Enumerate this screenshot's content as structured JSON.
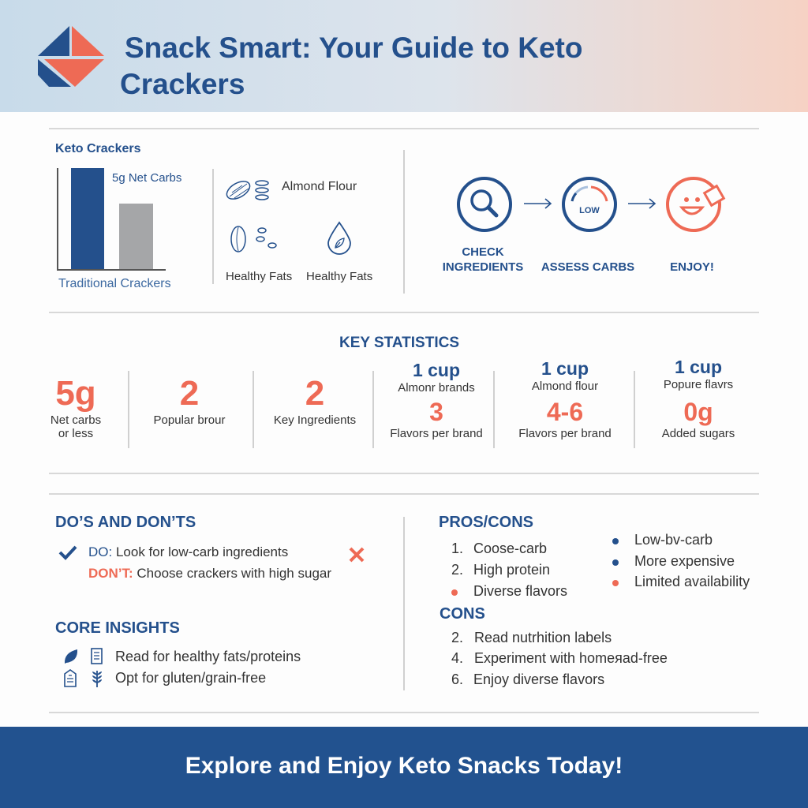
{
  "header": {
    "title_line1": "Snack Smart: Your Guide to Keto",
    "title_line2": "Crackers",
    "logo": "diamond-logo"
  },
  "colors": {
    "primary": "#24508c",
    "accent": "#ee6a55",
    "bar_gray": "#a5a6a8"
  },
  "comparison": {
    "title": "Keto Crackers",
    "bar_label": "5g Net Carbs",
    "axis_label": "Traditional Crackers",
    "bars": [
      {
        "color": "#24508c",
        "relative_height": 1.0
      },
      {
        "color": "#a5a6a8",
        "relative_height": 0.65
      }
    ]
  },
  "ingredients": [
    {
      "icon": "almond-icon",
      "label": "Almond Flour"
    },
    {
      "icon": "seeds-icon",
      "label": "Healthy Fats"
    },
    {
      "icon": "oil-drop-icon",
      "label": "Healthy Fats"
    }
  ],
  "steps": [
    {
      "icon": "magnifier-icon",
      "label_line1": "CHECK",
      "label_line2": "INGREDIENTS"
    },
    {
      "icon": "gauge-icon",
      "gauge_text": "LOW",
      "label_line1": "",
      "label_line2": "ASSESS CARBS"
    },
    {
      "icon": "smiley-cracker-icon",
      "label_line1": "",
      "label_line2": "ENJOY!"
    }
  ],
  "stats": {
    "title": "KEY STATISTICS",
    "items": [
      {
        "value": "5g",
        "label": "Net carbs",
        "label2": "or less"
      },
      {
        "value": "2",
        "label": "Popular brour"
      },
      {
        "value": "2",
        "label": "Key Ingredients"
      },
      {
        "top": "1 cup",
        "top_label": "Almonr brands",
        "value": "3",
        "label": "Flavors per brand"
      },
      {
        "top": "1 cup",
        "top_label": "Almond flour",
        "value": "4-6",
        "label": "Flavors per brand"
      },
      {
        "top": "1 cup",
        "top_label": "Popure flavrs",
        "value": "0g",
        "label": "Added sugars"
      }
    ]
  },
  "dos": {
    "title": "DO’S AND DON’TS",
    "do_prefix": "DO:",
    "do_text": " Look for low-carb ingredients",
    "dont_prefix": "DON’T:",
    "dont_text": " Choose crackers with high sugar"
  },
  "insights": {
    "title": "CORE INSIGHTS",
    "items": [
      {
        "icons": [
          "leaf-icon",
          "document-icon"
        ],
        "text": "Read for healthy fats/proteins"
      },
      {
        "icons": [
          "label-tag-icon",
          "wheat-icon"
        ],
        "text": "Opt for gluten/grain-free"
      }
    ]
  },
  "pros": {
    "title": "PROS/CONS",
    "left": [
      {
        "marker": "1.",
        "text": "Coose-carb"
      },
      {
        "marker": "2.",
        "text": "High protein"
      },
      {
        "marker": "dot-coral",
        "text": "Diverse flavors"
      }
    ],
    "right": [
      {
        "marker": "dot-blue",
        "text": "Low-bv-carb"
      },
      {
        "marker": "dot-blue",
        "text": "More expensive"
      },
      {
        "marker": "dot-coral",
        "text": "Limited availability"
      }
    ]
  },
  "cons": {
    "title": "CONS",
    "items": [
      {
        "marker": "2.",
        "text": "Read nutrhition labels"
      },
      {
        "marker": "4.",
        "text": "Experiment with homeяad-free"
      },
      {
        "marker": "6.",
        "text": "Enjoy diverse flavors"
      }
    ]
  },
  "footer": {
    "text": "Explore and Enjoy Keto Snacks Today!"
  }
}
